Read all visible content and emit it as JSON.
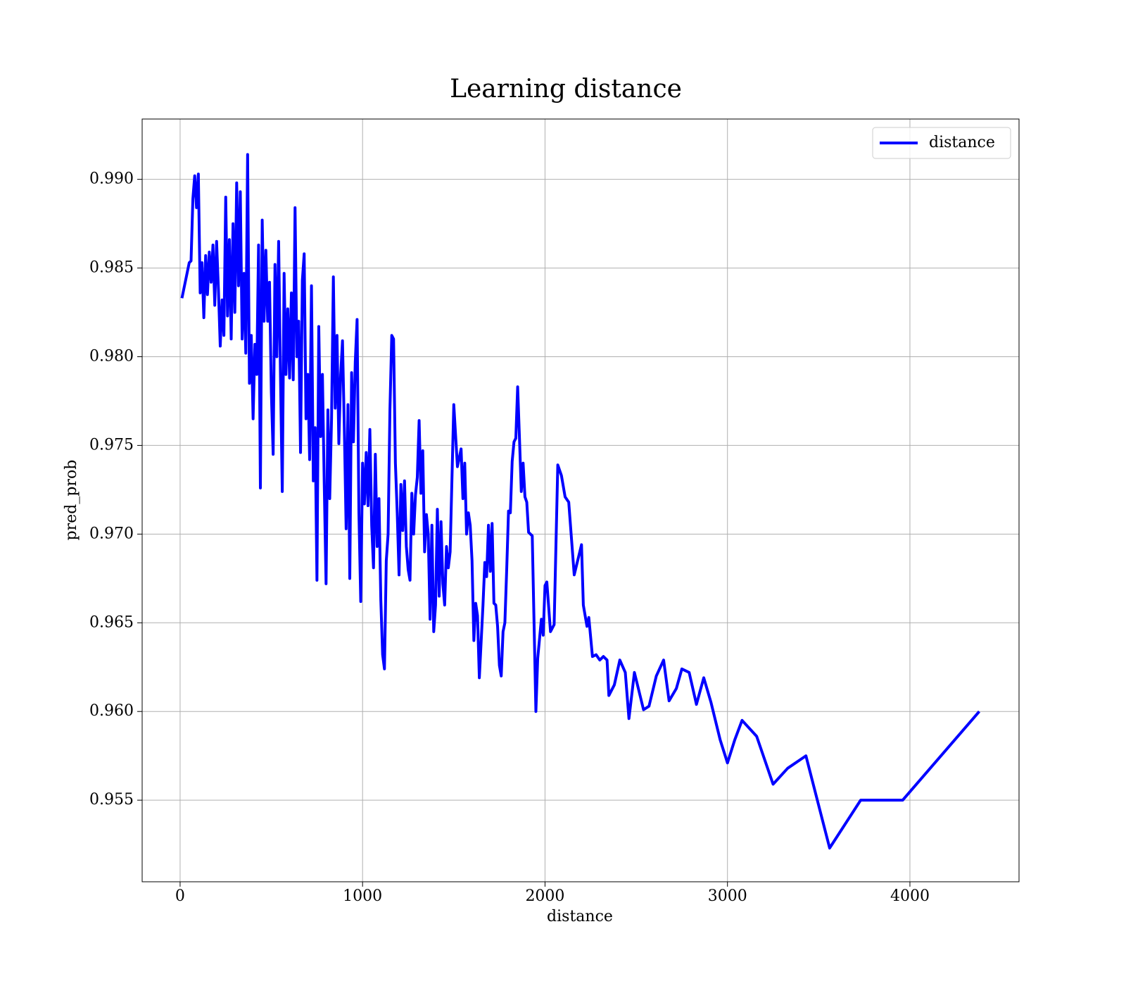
{
  "chart_data": {
    "type": "line",
    "title": "Learning distance",
    "xlabel": "distance",
    "ylabel": "pred_prob",
    "x": [
      10,
      50,
      60,
      70,
      80,
      90,
      100,
      110,
      120,
      130,
      140,
      150,
      160,
      170,
      180,
      190,
      200,
      210,
      220,
      230,
      240,
      250,
      260,
      270,
      280,
      290,
      300,
      310,
      320,
      330,
      340,
      350,
      360,
      370,
      380,
      390,
      400,
      410,
      420,
      430,
      440,
      450,
      460,
      470,
      480,
      490,
      500,
      510,
      520,
      530,
      540,
      550,
      560,
      570,
      580,
      590,
      600,
      610,
      620,
      630,
      640,
      650,
      660,
      670,
      680,
      690,
      700,
      710,
      720,
      730,
      740,
      750,
      760,
      770,
      780,
      790,
      800,
      810,
      820,
      830,
      840,
      850,
      860,
      870,
      880,
      890,
      900,
      910,
      920,
      930,
      940,
      950,
      960,
      970,
      980,
      990,
      1000,
      1010,
      1020,
      1030,
      1040,
      1050,
      1060,
      1070,
      1080,
      1090,
      1100,
      1110,
      1120,
      1130,
      1140,
      1150,
      1160,
      1170,
      1180,
      1190,
      1200,
      1210,
      1220,
      1230,
      1240,
      1250,
      1260,
      1270,
      1280,
      1290,
      1300,
      1310,
      1320,
      1330,
      1340,
      1350,
      1360,
      1370,
      1380,
      1390,
      1400,
      1410,
      1420,
      1430,
      1440,
      1450,
      1460,
      1470,
      1480,
      1500,
      1520,
      1540,
      1550,
      1560,
      1570,
      1580,
      1590,
      1600,
      1610,
      1620,
      1630,
      1640,
      1660,
      1670,
      1680,
      1690,
      1700,
      1710,
      1720,
      1730,
      1740,
      1750,
      1760,
      1770,
      1780,
      1790,
      1800,
      1810,
      1820,
      1830,
      1840,
      1850,
      1860,
      1870,
      1880,
      1890,
      1900,
      1910,
      1930,
      1950,
      1960,
      1980,
      1990,
      2000,
      2010,
      2030,
      2050,
      2070,
      2090,
      2110,
      2130,
      2160,
      2200,
      2210,
      2230,
      2240,
      2260,
      2280,
      2300,
      2320,
      2340,
      2350,
      2380,
      2410,
      2440,
      2460,
      2490,
      2540,
      2570,
      2610,
      2650,
      2680,
      2720,
      2750,
      2790,
      2830,
      2870,
      2910,
      2960,
      3000,
      3040,
      3080,
      3160,
      3250,
      3330,
      3430,
      3560,
      3730,
      3960,
      4380
    ],
    "series": [
      {
        "name": "distance",
        "color": "#0000ff",
        "values": [
          0.9833,
          0.9853,
          0.9854,
          0.9889,
          0.9902,
          0.9884,
          0.9903,
          0.9836,
          0.9853,
          0.9822,
          0.9857,
          0.9835,
          0.9859,
          0.9842,
          0.9863,
          0.9829,
          0.9865,
          0.9838,
          0.9806,
          0.9832,
          0.9812,
          0.989,
          0.9823,
          0.9866,
          0.981,
          0.9875,
          0.9825,
          0.9898,
          0.984,
          0.9893,
          0.981,
          0.9847,
          0.9802,
          0.9914,
          0.9785,
          0.9812,
          0.9765,
          0.9807,
          0.979,
          0.9863,
          0.9726,
          0.9877,
          0.982,
          0.986,
          0.982,
          0.9842,
          0.978,
          0.9745,
          0.9852,
          0.98,
          0.9865,
          0.979,
          0.9724,
          0.9847,
          0.979,
          0.9827,
          0.9788,
          0.9836,
          0.9787,
          0.9884,
          0.98,
          0.982,
          0.9746,
          0.9843,
          0.9858,
          0.9765,
          0.979,
          0.9742,
          0.984,
          0.973,
          0.976,
          0.9674,
          0.9817,
          0.9755,
          0.979,
          0.9728,
          0.9672,
          0.977,
          0.972,
          0.9765,
          0.9845,
          0.9771,
          0.9812,
          0.9751,
          0.979,
          0.9809,
          0.976,
          0.9703,
          0.9773,
          0.9675,
          0.9791,
          0.9752,
          0.9797,
          0.9821,
          0.9712,
          0.9662,
          0.974,
          0.9717,
          0.9746,
          0.9716,
          0.9759,
          0.9705,
          0.9681,
          0.9745,
          0.9693,
          0.972,
          0.9663,
          0.9632,
          0.9624,
          0.9685,
          0.97,
          0.977,
          0.9812,
          0.981,
          0.974,
          0.9712,
          0.9677,
          0.9728,
          0.9702,
          0.973,
          0.9693,
          0.968,
          0.9674,
          0.9723,
          0.97,
          0.9722,
          0.9732,
          0.9764,
          0.9723,
          0.9747,
          0.969,
          0.9711,
          0.97,
          0.9652,
          0.9705,
          0.9645,
          0.966,
          0.9714,
          0.9665,
          0.9707,
          0.9672,
          0.966,
          0.9693,
          0.9681,
          0.969,
          0.9773,
          0.9738,
          0.9748,
          0.972,
          0.974,
          0.97,
          0.9712,
          0.9705,
          0.9685,
          0.964,
          0.9661,
          0.9654,
          0.9619,
          0.966,
          0.9684,
          0.9676,
          0.9705,
          0.9679,
          0.9706,
          0.9661,
          0.966,
          0.9648,
          0.9626,
          0.962,
          0.9645,
          0.965,
          0.968,
          0.9713,
          0.9712,
          0.9741,
          0.9752,
          0.9754,
          0.9783,
          0.9754,
          0.9724,
          0.974,
          0.9721,
          0.9718,
          0.9701,
          0.9699,
          0.96,
          0.963,
          0.9652,
          0.9643,
          0.9671,
          0.9673,
          0.9645,
          0.9649,
          0.9739,
          0.9733,
          0.9721,
          0.9718,
          0.9677,
          0.9694,
          0.966,
          0.9648,
          0.9653,
          0.9631,
          0.9632,
          0.9629,
          0.9631,
          0.9629,
          0.9609,
          0.9615,
          0.9629,
          0.9622,
          0.9596,
          0.9622,
          0.9601,
          0.9603,
          0.962,
          0.9629,
          0.9606,
          0.9613,
          0.9624,
          0.9622,
          0.9604,
          0.9619,
          0.9605,
          0.9584,
          0.9571,
          0.9584,
          0.9595,
          0.9586,
          0.9559,
          0.9568,
          0.9575,
          0.9523,
          0.955,
          0.955,
          0.96
        ]
      }
    ],
    "xlim": [
      -208,
      4598
    ],
    "ylim": [
      0.9504,
      0.9934
    ],
    "xticks": [
      0,
      1000,
      2000,
      3000,
      4000
    ],
    "yticks": [
      0.955,
      {
        "value": 0.96,
        "label": "0.960"
      },
      0.965,
      {
        "value": 0.97,
        "label": "0.970"
      },
      0.975,
      {
        "value": 0.98,
        "label": "0.980"
      },
      0.985,
      {
        "value": 0.99,
        "label": "0.990"
      }
    ],
    "grid": true,
    "legend": "upper right"
  }
}
